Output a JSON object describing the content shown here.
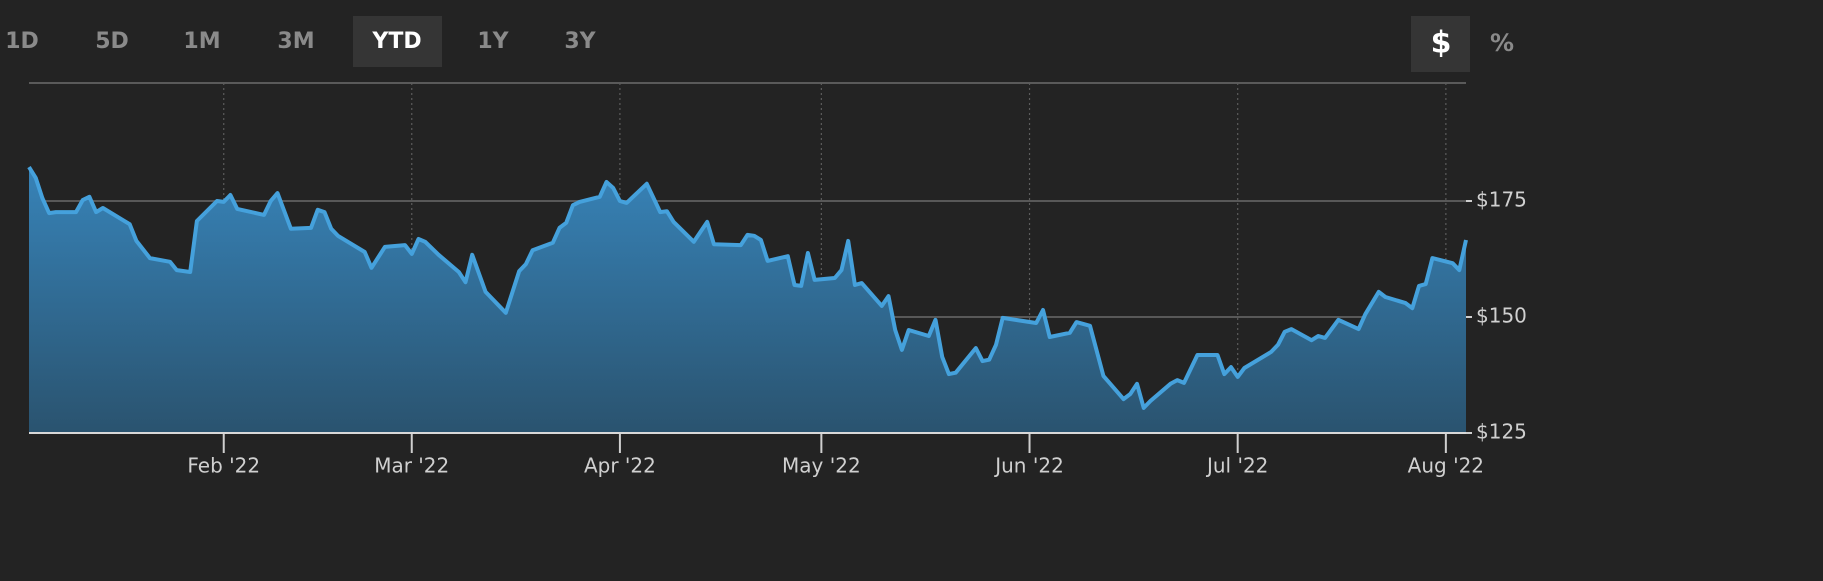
{
  "toolbar": {
    "ranges": [
      "1D",
      "5D",
      "1M",
      "3M",
      "YTD",
      "1Y",
      "3Y"
    ],
    "selected_range": "YTD",
    "units": [
      "$",
      "%"
    ],
    "selected_unit": "$"
  },
  "chart_data": {
    "type": "area",
    "color": "#45a1dc",
    "grid": true,
    "x": [
      0,
      1,
      2,
      3,
      4,
      7,
      8,
      9,
      10,
      11,
      15,
      16,
      18,
      21,
      22,
      24,
      25,
      28,
      29,
      30,
      31,
      35,
      36,
      37,
      39,
      42,
      43,
      44,
      45,
      46,
      50,
      51,
      53,
      56,
      57,
      58,
      59,
      61,
      64,
      65,
      66,
      68,
      71,
      73,
      74,
      75,
      78,
      79,
      80,
      81,
      82,
      85,
      86,
      87,
      88,
      89,
      92,
      94,
      95,
      96,
      99,
      101,
      102,
      106,
      107,
      108,
      109,
      110,
      113,
      114,
      115,
      116,
      117,
      120,
      121,
      122,
      123,
      124,
      127,
      128,
      129,
      130,
      131,
      134,
      135,
      136,
      137,
      138,
      141,
      142,
      143,
      144,
      145,
      150,
      151,
      152,
      155,
      156,
      158,
      160,
      163,
      164,
      165,
      166,
      167,
      170,
      171,
      172,
      174,
      177,
      178,
      179,
      180,
      181,
      185,
      186,
      187,
      188,
      191,
      192,
      193,
      195,
      198,
      199,
      201,
      202,
      205,
      206,
      207,
      208,
      209,
      212,
      213,
      214
    ],
    "values": [
      182.3,
      180,
      175.6,
      172.4,
      172.6,
      172.6,
      175.2,
      175.9,
      172.6,
      173.5,
      170,
      166.4,
      162.7,
      161.9,
      160.1,
      159.7,
      170.7,
      175,
      174.8,
      176.3,
      173.3,
      172,
      175,
      176.7,
      169,
      169.2,
      173.1,
      172.6,
      169,
      167.5,
      164,
      160.6,
      165.1,
      165.5,
      163.6,
      166.8,
      166.2,
      163.4,
      159.7,
      157.5,
      163.4,
      155.4,
      150.9,
      159.9,
      161.4,
      164.4,
      166,
      169.2,
      170.3,
      174.1,
      174.8,
      175.9,
      179.1,
      177.8,
      175,
      174.6,
      178.7,
      172.6,
      172.8,
      170.5,
      166.2,
      170.5,
      165.7,
      165.5,
      167.7,
      167.5,
      166.6,
      162.1,
      163.1,
      156.9,
      156.7,
      163.8,
      158,
      158.4,
      160.1,
      166.4,
      156.9,
      157.3,
      152.4,
      154.5,
      147.2,
      142.9,
      147.2,
      145.9,
      149.4,
      141.4,
      137.7,
      138,
      143.3,
      140.5,
      140.8,
      144,
      149.8,
      148.7,
      151.5,
      145.7,
      146.6,
      148.9,
      148.1,
      137.3,
      132.3,
      133.4,
      135.6,
      130.4,
      131.9,
      135.6,
      136.4,
      135.8,
      141.8,
      141.8,
      137.7,
      139.2,
      137.1,
      139,
      142.5,
      144,
      146.8,
      147.4,
      145,
      145.9,
      145.5,
      149.4,
      147.4,
      150.6,
      155.4,
      154.3,
      153,
      151.9,
      156.7,
      157.1,
      162.7,
      161.6,
      160.1,
      166.6
    ],
    "xlim": [
      0,
      214
    ],
    "xticks": [
      {
        "value": 29,
        "label": "Feb '22"
      },
      {
        "value": 57,
        "label": "Mar '22"
      },
      {
        "value": 88,
        "label": "Apr '22"
      },
      {
        "value": 118,
        "label": "May '22"
      },
      {
        "value": 149,
        "label": "Jun '22"
      },
      {
        "value": 180,
        "label": "Jul '22"
      },
      {
        "value": 211,
        "label": "Aug '22"
      }
    ],
    "ylim": [
      125,
      200
    ],
    "yticks": [
      {
        "value": 125,
        "label": "$125"
      },
      {
        "value": 150,
        "label": "$150"
      },
      {
        "value": 175,
        "label": "$175"
      }
    ]
  }
}
